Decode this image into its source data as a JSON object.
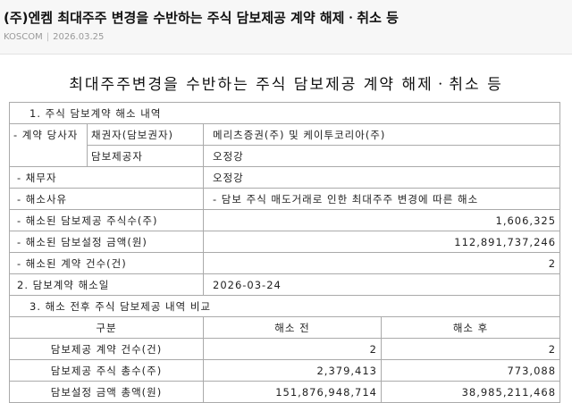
{
  "header": {
    "title": "(주)엔켐 최대주주 변경을 수반하는 주식 담보제공 계약 해제ㆍ취소 등",
    "source": "KOSCOM",
    "separator": "|",
    "date": "2026.03.25"
  },
  "document": {
    "title": "최대주주변경을 수반하는 주식 담보제공 계약 해제ㆍ취소 등",
    "section1": {
      "heading": "1. 주식 담보계약 해소 내역",
      "contract_party_label": "- 계약 당사자",
      "creditor_label": "채권자(담보권자)",
      "creditor_value": "메리츠증권(주) 및 케이투코리아(주)",
      "provider_label": "담보제공자",
      "provider_value": "오정강",
      "debtor_label": "- 채무자",
      "debtor_value": "오정강",
      "reason_label": "- 해소사유",
      "reason_value": "- 담보 주식 매도거래로 인한 최대주주 변경에 따른 해소",
      "shares_label": "- 해소된 담보제공 주식수(주)",
      "shares_value": "1,606,325",
      "amount_label": "- 해소된 담보설정 금액(원)",
      "amount_value": "112,891,737,246",
      "count_label": "- 해소된 계약 건수(건)",
      "count_value": "2"
    },
    "section2": {
      "label": "2. 담보계약 해소일",
      "value": "2026-03-24"
    },
    "section3": {
      "heading": "3. 해소 전후 주식 담보제공 내역 비교",
      "columns": [
        "구분",
        "해소 전",
        "해소 후"
      ],
      "rows": [
        {
          "label": "담보제공 계약 건수(건)",
          "before": "2",
          "after": "2"
        },
        {
          "label": "담보제공 주식 총수(주)",
          "before": "2,379,413",
          "after": "773,088"
        },
        {
          "label": "담보설정 금액 총액(원)",
          "before": "151,876,948,714",
          "after": "38,985,211,468"
        }
      ]
    }
  }
}
